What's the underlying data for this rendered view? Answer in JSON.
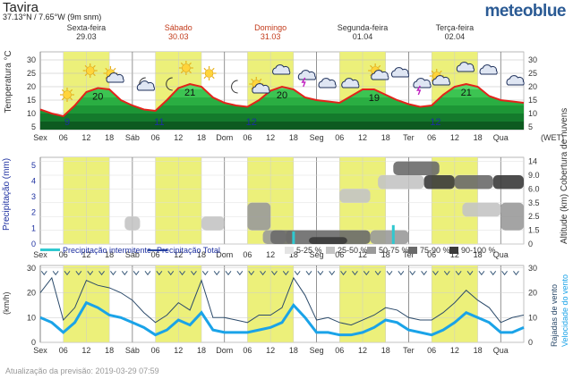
{
  "header": {
    "place": "Tavira",
    "coords": "37.13°N / 7.65°W (9m snm)",
    "brand": "meteoblue"
  },
  "days": [
    {
      "name": "Sexta-feira",
      "date": "29.03",
      "weekend": false
    },
    {
      "name": "Sábado",
      "date": "30.03",
      "weekend": true
    },
    {
      "name": "Domingo",
      "date": "31.03",
      "weekend": true
    },
    {
      "name": "Segunda-feira",
      "date": "01.04",
      "weekend": false
    },
    {
      "name": "Terça-feira",
      "date": "02.04",
      "weekend": false
    }
  ],
  "x_ticks": [
    "Sex",
    "06",
    "12",
    "18",
    "Sáb",
    "06",
    "12",
    "18",
    "Dom",
    "06",
    "12",
    "18",
    "Seg",
    "06",
    "12",
    "18",
    "Ter",
    "06",
    "12",
    "18",
    "Qua"
  ],
  "tz_label": "(WET)",
  "footer": "Atualização da previsão: 2019-03-29 07:59",
  "chart_data": [
    {
      "type": "area",
      "ylabel": "Temperatura °C",
      "yticks": [
        5,
        10,
        15,
        20,
        25,
        30
      ],
      "ylim": [
        4,
        33
      ],
      "x_hours": [
        0,
        3,
        6,
        9,
        12,
        15,
        18,
        21,
        24,
        27,
        30,
        33,
        36,
        39,
        42,
        45,
        48,
        51,
        54,
        57,
        60,
        63,
        66,
        69,
        72,
        75,
        78,
        81,
        84,
        87,
        90,
        93,
        96,
        99,
        102,
        105,
        108,
        111,
        114,
        117,
        120,
        123,
        126
      ],
      "temperature": [
        11.5,
        10,
        9,
        13,
        18,
        19.5,
        19,
        15,
        13,
        11.5,
        11,
        15,
        19.5,
        21,
        20,
        16,
        14,
        13,
        12.5,
        15,
        18.5,
        20,
        19,
        16,
        15,
        14.5,
        14,
        16.5,
        19,
        19,
        17,
        15,
        13.5,
        12.5,
        13,
        17,
        20,
        21,
        20,
        16.5,
        15,
        14.5,
        14
      ],
      "labels": [
        {
          "text": "9",
          "x_hour": 7
        },
        {
          "text": "20",
          "x_hour": 15
        },
        {
          "text": "11",
          "x_hour": 31
        },
        {
          "text": "21",
          "x_hour": 39
        },
        {
          "text": "12",
          "x_hour": 55
        },
        {
          "text": "20",
          "x_hour": 63
        },
        {
          "text": "19",
          "x_hour": 87
        },
        {
          "text": "12",
          "x_hour": 103
        },
        {
          "text": "21",
          "x_hour": 111
        }
      ],
      "weather_icons": [
        {
          "icon": "sun-icon",
          "x_hour": 7,
          "y": 17
        },
        {
          "icon": "sun-icon",
          "x_hour": 13,
          "y": 26
        },
        {
          "icon": "sun-cloud-icon",
          "x_hour": 19,
          "y": 24
        },
        {
          "icon": "moon-cloud-icon",
          "x_hour": 27,
          "y": 21
        },
        {
          "icon": "moon-icon",
          "x_hour": 34,
          "y": 21
        },
        {
          "icon": "sun-icon",
          "x_hour": 38,
          "y": 27
        },
        {
          "icon": "sun-icon",
          "x_hour": 44,
          "y": 25
        },
        {
          "icon": "moon-icon",
          "x_hour": 51,
          "y": 20
        },
        {
          "icon": "sun-cloud-icon",
          "x_hour": 57,
          "y": 20
        },
        {
          "icon": "cloud-icon",
          "x_hour": 63,
          "y": 26
        },
        {
          "icon": "thunder-cloud-icon",
          "x_hour": 69,
          "y": 25
        },
        {
          "icon": "cloud-icon",
          "x_hour": 75,
          "y": 21
        },
        {
          "icon": "cloud-icon",
          "x_hour": 81,
          "y": 21
        },
        {
          "icon": "sun-cloud-icon",
          "x_hour": 88,
          "y": 25
        },
        {
          "icon": "cloud-icon",
          "x_hour": 94,
          "y": 25
        },
        {
          "icon": "thunder-cloud-icon",
          "x_hour": 99,
          "y": 22
        },
        {
          "icon": "sun-cloud-icon",
          "x_hour": 104,
          "y": 23
        },
        {
          "icon": "cloud-icon",
          "x_hour": 111,
          "y": 27
        },
        {
          "icon": "cloud-icon",
          "x_hour": 117,
          "y": 26
        },
        {
          "icon": "cloud-icon",
          "x_hour": 124,
          "y": 22
        }
      ]
    },
    {
      "type": "heatmap",
      "ylabel_left": "Precipitação (mm)",
      "ylabel_right": "Altitude (km) Cobertura de nuvens",
      "yticks_left": [
        0,
        1,
        2,
        3,
        4,
        5
      ],
      "yticks_right": [
        "0",
        "1.5",
        "2.5",
        "3.5",
        "6.0",
        "9.0",
        "14"
      ],
      "clouds": [
        {
          "x_hours": [
            22,
            26
          ],
          "alt_band": [
            1,
            2
          ],
          "cover": 1
        },
        {
          "x_hours": [
            42,
            48
          ],
          "alt_band": [
            1,
            2
          ],
          "cover": 1
        },
        {
          "x_hours": [
            54,
            60
          ],
          "alt_band": [
            1,
            3
          ],
          "cover": 2
        },
        {
          "x_hours": [
            58,
            64
          ],
          "alt_band": [
            0,
            1
          ],
          "cover": 2
        },
        {
          "x_hours": [
            60,
            66
          ],
          "alt_band": [
            0,
            1
          ],
          "cover": 3
        },
        {
          "x_hours": [
            64,
            86
          ],
          "alt_band": [
            0,
            1
          ],
          "cover": 3
        },
        {
          "x_hours": [
            70,
            80
          ],
          "alt_band": [
            0,
            0.5
          ],
          "cover": 4
        },
        {
          "x_hours": [
            86,
            96
          ],
          "alt_band": [
            0,
            1
          ],
          "cover": 2
        },
        {
          "x_hours": [
            78,
            86
          ],
          "alt_band": [
            3,
            4
          ],
          "cover": 1
        },
        {
          "x_hours": [
            88,
            100
          ],
          "alt_band": [
            4,
            5
          ],
          "cover": 1
        },
        {
          "x_hours": [
            92,
            104
          ],
          "alt_band": [
            5,
            6
          ],
          "cover": 3
        },
        {
          "x_hours": [
            100,
            108
          ],
          "alt_band": [
            4,
            5
          ],
          "cover": 4
        },
        {
          "x_hours": [
            108,
            118
          ],
          "alt_band": [
            4,
            5
          ],
          "cover": 3
        },
        {
          "x_hours": [
            118,
            126
          ],
          "alt_band": [
            4,
            5
          ],
          "cover": 4
        },
        {
          "x_hours": [
            120,
            126
          ],
          "alt_band": [
            1,
            3
          ],
          "cover": 2
        },
        {
          "x_hours": [
            110,
            120
          ],
          "alt_band": [
            2,
            3
          ],
          "cover": 1
        }
      ],
      "precip_hourly": [
        {
          "x_hour": 66,
          "mm": 0.8
        },
        {
          "x_hour": 92,
          "mm": 1.2
        }
      ],
      "legend": {
        "hourly": "Precipitação intermitente",
        "total": "Precipitação Total",
        "cover": [
          "5-25 %",
          "25-50 %",
          "50-75 %",
          "75-90 %",
          "90-100 %"
        ]
      }
    },
    {
      "type": "line",
      "ylabel_left": "(km/h)",
      "ylabel_right_1": "Rajadas de vento",
      "ylabel_right_2": "Velocidade do vento",
      "yticks": [
        0,
        10,
        20,
        30
      ],
      "ylim": [
        0,
        31
      ],
      "x_hours": [
        0,
        3,
        6,
        9,
        12,
        15,
        18,
        21,
        24,
        27,
        30,
        33,
        36,
        39,
        42,
        45,
        48,
        51,
        54,
        57,
        60,
        63,
        66,
        69,
        72,
        75,
        78,
        81,
        84,
        87,
        90,
        93,
        96,
        99,
        102,
        105,
        108,
        111,
        114,
        117,
        120,
        123,
        126
      ],
      "gusts": [
        20,
        26,
        9,
        14,
        25,
        23,
        22,
        20,
        17,
        12,
        8,
        11,
        16,
        13,
        25,
        10,
        10,
        9,
        8,
        11,
        11,
        14,
        26,
        19,
        9,
        10,
        8,
        7,
        9,
        11,
        14,
        13,
        10,
        9,
        9,
        12,
        16,
        21,
        17,
        14,
        8,
        10,
        11
      ],
      "speed": [
        10,
        8,
        4,
        8,
        16,
        14,
        11,
        10,
        8,
        6,
        3,
        5,
        9,
        7,
        12,
        5,
        4,
        4,
        4,
        5,
        6,
        8,
        15,
        10,
        4,
        4,
        3,
        3,
        4,
        6,
        9,
        8,
        5,
        4,
        3,
        5,
        8,
        12,
        10,
        8,
        4,
        4,
        6
      ],
      "wind_arrows_y": 28
    }
  ],
  "colors": {
    "day_band": "#ecf07a",
    "temp_line": "#e2231a",
    "temp_fill_dark": "#1a7f2e",
    "temp_fill_light": "#43c95a",
    "gust_line": "#2b4a6a",
    "speed_line": "#1aa3e8",
    "precip_bar": "#30c8d0",
    "grid": "#999999",
    "label_blue": "#1c2fa0"
  }
}
